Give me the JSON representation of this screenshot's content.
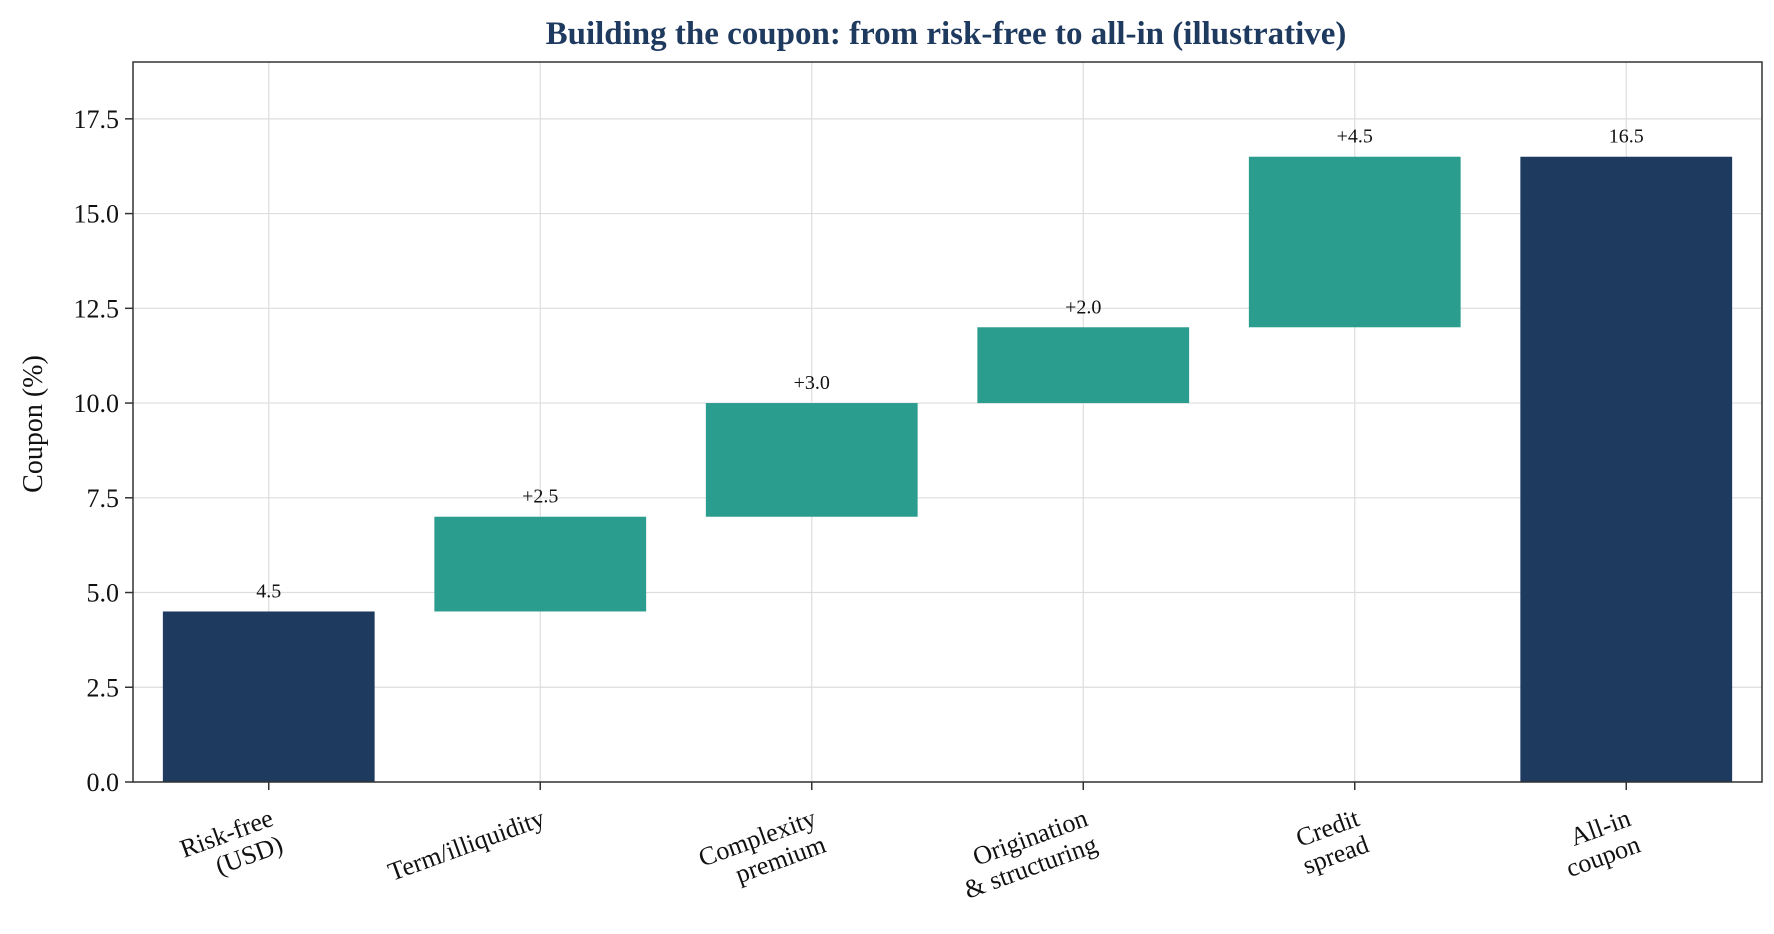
{
  "chart_data": {
    "type": "bar",
    "subtype": "waterfall",
    "title": "Building the coupon: from risk-free to all-in (illustrative)",
    "xlabel": "",
    "ylabel": "Coupon (%)",
    "ylim": [
      0,
      19
    ],
    "yticks": [
      "0.0",
      "2.5",
      "5.0",
      "7.5",
      "10.0",
      "12.5",
      "15.0",
      "17.5"
    ],
    "grid": true,
    "categories": [
      [
        "Risk-free",
        "(USD)"
      ],
      [
        "Term/illiquidity"
      ],
      [
        "Complexity",
        "premium"
      ],
      [
        "Origination",
        "& structuring"
      ],
      [
        "Credit",
        "spread"
      ],
      [
        "All-in",
        "coupon"
      ]
    ],
    "bars": [
      {
        "kind": "total",
        "start": 0,
        "end": 4.5,
        "label": "4.5"
      },
      {
        "kind": "increment",
        "start": 4.5,
        "end": 7.0,
        "label": "+2.5"
      },
      {
        "kind": "increment",
        "start": 7.0,
        "end": 10.0,
        "label": "+3.0"
      },
      {
        "kind": "increment",
        "start": 10.0,
        "end": 12.0,
        "label": "+2.0"
      },
      {
        "kind": "increment",
        "start": 12.0,
        "end": 16.5,
        "label": "+4.5"
      },
      {
        "kind": "total",
        "start": 0,
        "end": 16.5,
        "label": "16.5"
      }
    ],
    "colors": {
      "total": "#1f3a5f",
      "increment": "#2a9d8f",
      "title": "#1f3a5f",
      "grid": "#dddddd",
      "axis": "#333333"
    }
  }
}
